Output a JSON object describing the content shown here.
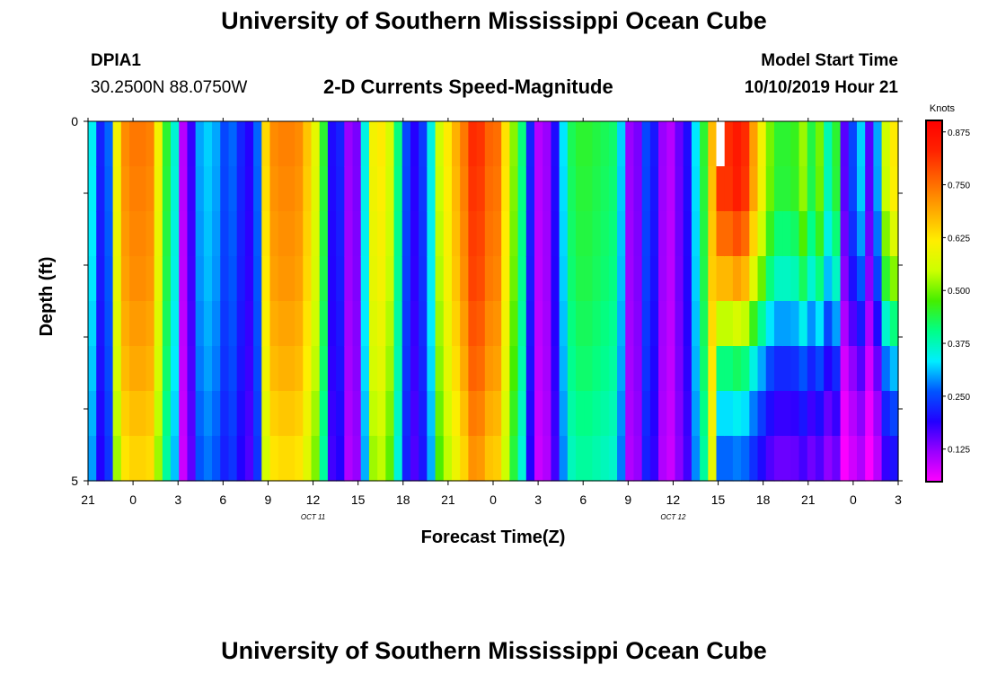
{
  "page_title": "University of Southern Mississippi Ocean Cube",
  "station": {
    "id": "DPIA1",
    "coords": "30.2500N 88.0750W"
  },
  "model_start": {
    "label": "Model Start Time",
    "value": "10/10/2019 Hour 21"
  },
  "footer_title": "University of Southern Mississippi Ocean Cube",
  "colors": {
    "palette": [
      "#ff00ff",
      "#9900ff",
      "#2200ff",
      "#0055ff",
      "#00eeff",
      "#00ff88",
      "#44ee00",
      "#ccff00",
      "#ffee00",
      "#ffaa00",
      "#ff6600",
      "#ff2200",
      "#ff0000"
    ]
  },
  "chart_data": {
    "type": "heatmap",
    "title": "2-D Currents Speed-Magnitude",
    "xlabel": "Forecast Time(Z)",
    "ylabel": "Depth (ft)",
    "x_ticks": [
      "21",
      "0",
      "3",
      "6",
      "9",
      "12",
      "15",
      "18",
      "21",
      "0",
      "3",
      "6",
      "9",
      "12",
      "15",
      "18",
      "21",
      "0",
      "3"
    ],
    "date_labels": [
      {
        "text": "OCT 11",
        "at_tick_index": 5
      },
      {
        "text": "OCT 12",
        "at_tick_index": 13
      }
    ],
    "y_ticks": [
      "0",
      "5"
    ],
    "y_range": [
      0,
      5
    ],
    "x_range_hours": [
      0,
      54
    ],
    "depth_rows": 8,
    "colorbar": {
      "unit": "Knots",
      "range": [
        0.05,
        0.9
      ],
      "tick_labels": [
        "0.875",
        "0.750",
        "0.625",
        "0.500",
        "0.375",
        "0.250",
        "0.125"
      ],
      "tick_values": [
        0.875,
        0.75,
        0.625,
        0.5,
        0.375,
        0.25,
        0.125
      ]
    },
    "speed_profile_knots": [
      0.34,
      0.22,
      0.27,
      0.6,
      0.72,
      0.74,
      0.74,
      0.73,
      0.6,
      0.45,
      0.36,
      0.1,
      0.18,
      0.3,
      0.32,
      0.3,
      0.25,
      0.27,
      0.22,
      0.19,
      0.27,
      0.64,
      0.72,
      0.73,
      0.73,
      0.72,
      0.66,
      0.58,
      0.45,
      0.2,
      0.22,
      0.12,
      0.14,
      0.35,
      0.6,
      0.62,
      0.56,
      0.41,
      0.25,
      0.19,
      0.24,
      0.35,
      0.55,
      0.62,
      0.68,
      0.74,
      0.82,
      0.81,
      0.76,
      0.75,
      0.63,
      0.51,
      0.41,
      0.22,
      0.1,
      0.12,
      0.2,
      0.33,
      0.43,
      0.45,
      0.45,
      0.44,
      0.43,
      0.42,
      0.32,
      0.12,
      0.14,
      0.25,
      0.21,
      0.12,
      0.1,
      0.15,
      0.2,
      0.33,
      0.45,
      0.67,
      0.82,
      0.82,
      0.85,
      0.82,
      0.7,
      0.6,
      0.5,
      0.45,
      0.45,
      0.46,
      0.52,
      0.44,
      0.5,
      0.38,
      0.45,
      0.16,
      0.25,
      0.32,
      0.16,
      0.3,
      0.55,
      0.62
    ],
    "depth_profile": {
      "cols_0_75": [
        1,
        0.99,
        0.98,
        0.97,
        0.95,
        0.93,
        0.9,
        0.87
      ],
      "cols_76_97": [
        1,
        0.99,
        0.92,
        0.82,
        0.66,
        0.5,
        0.4,
        0.33
      ]
    },
    "masked_cells": [
      {
        "col": 76,
        "row": 0
      }
    ]
  }
}
